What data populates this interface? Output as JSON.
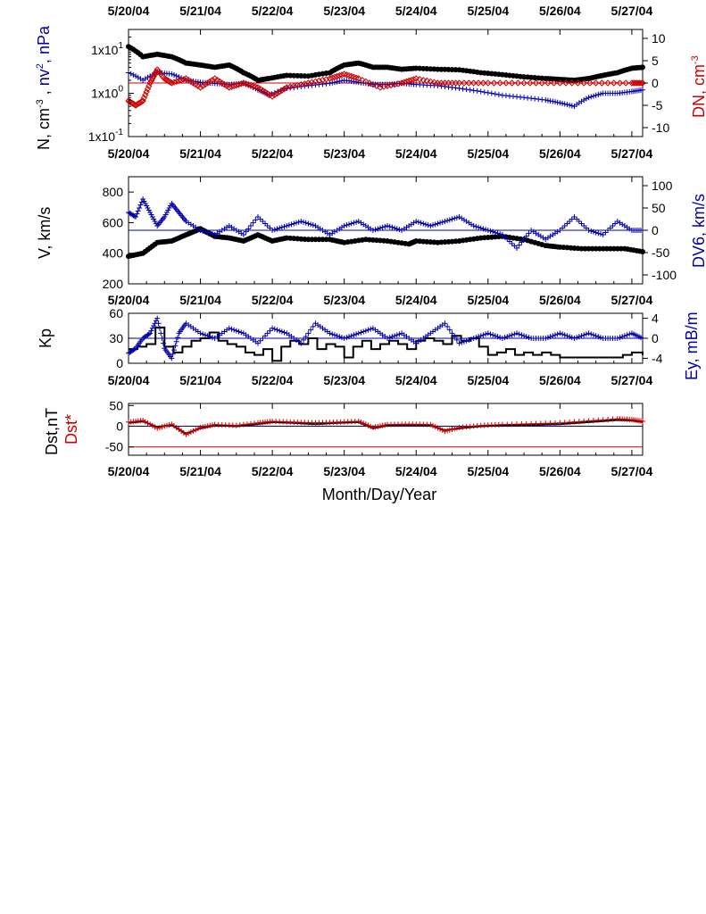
{
  "figure": {
    "xlabel": "Month/Day/Year",
    "top_dates": [
      "5/20/04",
      "5/21/04",
      "5/22/04",
      "5/23/04",
      "5/24/04",
      "5/25/04",
      "5/26/04",
      "5/27/04"
    ]
  },
  "colors": {
    "black": "#000000",
    "blue": "#0000aa",
    "red": "#cc0000"
  },
  "chart_data": [
    {
      "type": "scatter",
      "panel": "density",
      "x_range_days": [
        20.0,
        27.15
      ],
      "x_ticks": [
        "5/20/04",
        "5/21/04",
        "5/22/04",
        "5/23/04",
        "5/24/04",
        "5/25/04",
        "5/26/04",
        "5/27/04"
      ],
      "ylabel_left": [
        "N, cm",
        "-3",
        " , ",
        "nv",
        "2",
        ", nPa"
      ],
      "ylabel_right": [
        "DN, cm",
        "-3"
      ],
      "ylim_left": [
        0.1,
        30
      ],
      "yscale_left": "log",
      "yticks_left": [
        "1x10",
        "1",
        "1x10",
        "0",
        "1x10",
        "-1"
      ],
      "ylim_right": [
        -12,
        12
      ],
      "yticks_right": [
        "10",
        "5",
        "0",
        "-5",
        "-10"
      ],
      "series": [
        {
          "color": "black",
          "marker": "dot",
          "x": [
            20.0,
            20.2,
            20.4,
            20.6,
            20.8,
            21.0,
            21.2,
            21.4,
            21.6,
            21.8,
            21.95,
            22.2,
            22.5,
            22.8,
            23.0,
            23.2,
            23.4,
            23.6,
            23.8,
            24.0,
            24.3,
            24.6,
            24.9,
            25.2,
            25.5,
            25.8,
            26.0,
            26.2,
            26.4,
            26.6,
            26.8,
            27.0,
            27.15
          ],
          "y": [
            12,
            7,
            8,
            7,
            5,
            4.5,
            4,
            4.5,
            3,
            2,
            2.2,
            2.6,
            2.5,
            3,
            4.5,
            5,
            4,
            4,
            3.6,
            3.8,
            3.6,
            3.5,
            3,
            2.7,
            2.4,
            2.2,
            2.1,
            2,
            2.2,
            2.6,
            3,
            3.8,
            4
          ]
        },
        {
          "color": "blue",
          "marker": "plus",
          "x": [
            20.0,
            20.2,
            20.4,
            20.6,
            20.8,
            21.0,
            21.2,
            21.4,
            21.6,
            21.8,
            21.95,
            22.2,
            22.5,
            22.8,
            23.0,
            23.2,
            23.4,
            23.6,
            23.8,
            24.0,
            24.3,
            24.6,
            24.9,
            25.2,
            25.5,
            25.8,
            26.0,
            26.2,
            26.4,
            26.6,
            26.8,
            27.0,
            27.15
          ],
          "y": [
            3,
            2,
            3,
            2.8,
            2,
            1.8,
            1.7,
            1.6,
            1.7,
            1.2,
            0.9,
            1.3,
            1.5,
            1.7,
            2,
            1.8,
            1.6,
            1.6,
            1.7,
            1.6,
            1.5,
            1.3,
            1.1,
            0.9,
            0.8,
            0.7,
            0.6,
            0.5,
            0.8,
            1,
            1,
            1.1,
            1.2
          ]
        },
        {
          "color": "red",
          "marker": "diamond",
          "axis": "right",
          "x": [
            20.0,
            20.1,
            20.2,
            20.3,
            20.4,
            20.5,
            20.6,
            20.8,
            21.0,
            21.2,
            21.4,
            21.6,
            21.8,
            22.0,
            22.2,
            22.5,
            22.8,
            23.0,
            23.2,
            23.5,
            23.8,
            24.0,
            24.3,
            24.6,
            25.0,
            25.5,
            26.0,
            26.5,
            27.0,
            27.15
          ],
          "y": [
            -4,
            -5,
            -4,
            0,
            3,
            1,
            0,
            1,
            -1,
            1,
            -1,
            0,
            -1,
            -3,
            -1,
            0,
            1,
            2,
            1,
            -1,
            0,
            1,
            0,
            0,
            0,
            0,
            0,
            0,
            0,
            0
          ]
        }
      ]
    },
    {
      "type": "scatter",
      "panel": "velocity",
      "x_ticks": [
        "5/20/04",
        "5/21/04",
        "5/22/04",
        "5/23/04",
        "5/24/04",
        "5/25/04",
        "5/26/04",
        "5/27/04"
      ],
      "ylabel_left": "V, km/s",
      "ylabel_right": "DV6, km/s",
      "ylim_left": [
        200,
        900
      ],
      "yticks_left": [
        "800",
        "600",
        "400",
        "200"
      ],
      "ylim_right": [
        -120,
        120
      ],
      "yticks_right": [
        "100",
        "50",
        "0",
        "-50",
        "-100"
      ],
      "series": [
        {
          "color": "black",
          "marker": "dot",
          "x": [
            20.0,
            20.2,
            20.4,
            20.6,
            20.8,
            21.0,
            21.2,
            21.4,
            21.6,
            21.8,
            22.0,
            22.2,
            22.5,
            22.8,
            23.0,
            23.3,
            23.6,
            23.9,
            24.0,
            24.3,
            24.6,
            24.9,
            25.2,
            25.5,
            25.8,
            26.0,
            26.3,
            26.6,
            26.9,
            27.15
          ],
          "y": [
            380,
            400,
            470,
            480,
            520,
            560,
            510,
            500,
            480,
            520,
            480,
            500,
            490,
            490,
            470,
            490,
            480,
            460,
            480,
            470,
            480,
            500,
            510,
            490,
            450,
            440,
            430,
            430,
            430,
            410
          ]
        },
        {
          "color": "blue",
          "marker": "plus",
          "axis": "right",
          "x": [
            20.0,
            20.1,
            20.2,
            20.3,
            20.4,
            20.5,
            20.6,
            20.7,
            20.8,
            21.0,
            21.2,
            21.4,
            21.6,
            21.8,
            22.0,
            22.2,
            22.4,
            22.6,
            22.8,
            23.0,
            23.2,
            23.4,
            23.6,
            23.8,
            24.0,
            24.2,
            24.4,
            24.6,
            24.8,
            25.0,
            25.2,
            25.4,
            25.6,
            25.8,
            26.0,
            26.2,
            26.4,
            26.6,
            26.8,
            27.0,
            27.15
          ],
          "y": [
            40,
            30,
            70,
            40,
            10,
            30,
            60,
            40,
            20,
            0,
            -10,
            10,
            -10,
            30,
            0,
            10,
            20,
            10,
            -10,
            10,
            20,
            0,
            10,
            0,
            20,
            10,
            20,
            30,
            10,
            0,
            -10,
            -40,
            0,
            -20,
            0,
            30,
            0,
            -10,
            20,
            0,
            0
          ]
        }
      ]
    },
    {
      "type": "line",
      "panel": "kp",
      "x_ticks": [
        "5/20/04",
        "5/21/04",
        "5/22/04",
        "5/23/04",
        "5/24/04",
        "5/25/04",
        "5/26/04",
        "5/27/04"
      ],
      "ylabel_left": "Kp",
      "ylabel_right": "Ey,  mB/m",
      "ylim_left": [
        0,
        60
      ],
      "yticks_left": [
        "60",
        "30",
        "0"
      ],
      "ylim_right": [
        -5,
        5
      ],
      "yticks_right": [
        "4",
        "0",
        "-4"
      ],
      "series": [
        {
          "color": "black",
          "type": "step",
          "x": [
            20.0,
            20.125,
            20.25,
            20.375,
            20.5,
            20.625,
            20.75,
            20.875,
            21.0,
            21.125,
            21.25,
            21.375,
            21.5,
            21.625,
            21.75,
            21.875,
            22.0,
            22.125,
            22.25,
            22.375,
            22.5,
            22.625,
            22.75,
            22.875,
            23.0,
            23.125,
            23.25,
            23.375,
            23.5,
            23.625,
            23.75,
            23.875,
            24.0,
            24.125,
            24.25,
            24.375,
            24.5,
            24.625,
            24.75,
            24.875,
            25.0,
            25.125,
            25.25,
            25.375,
            25.5,
            25.625,
            25.75,
            25.875,
            26.0,
            26.5,
            26.75,
            26.875,
            27.0,
            27.15
          ],
          "y": [
            17,
            20,
            23,
            43,
            20,
            13,
            20,
            27,
            30,
            37,
            27,
            23,
            20,
            13,
            10,
            17,
            3,
            20,
            27,
            23,
            30,
            17,
            23,
            20,
            7,
            20,
            27,
            17,
            23,
            27,
            23,
            17,
            27,
            30,
            27,
            23,
            33,
            27,
            30,
            20,
            10,
            13,
            17,
            10,
            13,
            10,
            13,
            10,
            7,
            7,
            7,
            10,
            13,
            10
          ]
        },
        {
          "color": "blue",
          "marker": "plus",
          "axis": "right",
          "x": [
            20.0,
            20.1,
            20.2,
            20.3,
            20.4,
            20.5,
            20.6,
            20.7,
            20.8,
            21.0,
            21.2,
            21.4,
            21.6,
            21.8,
            22.0,
            22.2,
            22.4,
            22.6,
            22.8,
            23.0,
            23.2,
            23.4,
            23.6,
            23.8,
            24.0,
            24.2,
            24.4,
            24.6,
            24.8,
            25.0,
            25.2,
            25.4,
            25.6,
            25.8,
            26.0,
            26.2,
            26.4,
            26.6,
            26.8,
            27.0,
            27.15
          ],
          "y": [
            -3,
            -2,
            0,
            1,
            4,
            -2,
            -4,
            1,
            3,
            1,
            0,
            2,
            1,
            -1,
            2,
            1,
            -1,
            3,
            1,
            0,
            1,
            2,
            0,
            1,
            -1,
            1,
            3,
            -1,
            0,
            1,
            0,
            1,
            0,
            0,
            1,
            0,
            1,
            0,
            0,
            1,
            0
          ]
        }
      ]
    },
    {
      "type": "line",
      "panel": "dst",
      "x_ticks": [
        "5/20/04",
        "5/21/04",
        "5/22/04",
        "5/23/04",
        "5/24/04",
        "5/25/04",
        "5/26/04",
        "5/27/04"
      ],
      "ylabel_left": "Dst,nT",
      "ylabel_left2": "Dst*",
      "ylim": [
        -70,
        55
      ],
      "yticks": [
        "50",
        "0",
        "-50"
      ],
      "reference_lines": [
        0,
        -50
      ],
      "series": [
        {
          "color": "black",
          "type": "line",
          "x": [
            20.0,
            20.2,
            20.4,
            20.6,
            20.8,
            21.0,
            21.2,
            21.5,
            21.8,
            22.0,
            22.3,
            22.6,
            22.9,
            23.2,
            23.4,
            23.6,
            23.9,
            24.2,
            24.4,
            24.6,
            24.9,
            25.2,
            25.6,
            26.0,
            26.4,
            26.8,
            27.0,
            27.15
          ],
          "y": [
            8,
            12,
            -2,
            3,
            -18,
            -5,
            2,
            0,
            5,
            10,
            8,
            5,
            8,
            10,
            -5,
            2,
            3,
            2,
            -10,
            -5,
            0,
            2,
            3,
            5,
            10,
            15,
            14,
            10
          ]
        },
        {
          "color": "red",
          "marker": "plus",
          "x": [
            20.0,
            20.2,
            20.4,
            20.6,
            20.8,
            21.0,
            21.2,
            21.5,
            21.8,
            22.0,
            22.3,
            22.6,
            22.9,
            23.2,
            23.4,
            23.6,
            23.9,
            24.2,
            24.4,
            24.6,
            24.9,
            25.2,
            25.6,
            26.0,
            26.4,
            26.8,
            27.0,
            27.15
          ],
          "y": [
            10,
            14,
            -5,
            5,
            -20,
            -3,
            4,
            2,
            8,
            12,
            10,
            8,
            10,
            12,
            -3,
            4,
            5,
            4,
            -12,
            -3,
            2,
            4,
            6,
            8,
            13,
            18,
            16,
            12
          ]
        }
      ]
    }
  ]
}
